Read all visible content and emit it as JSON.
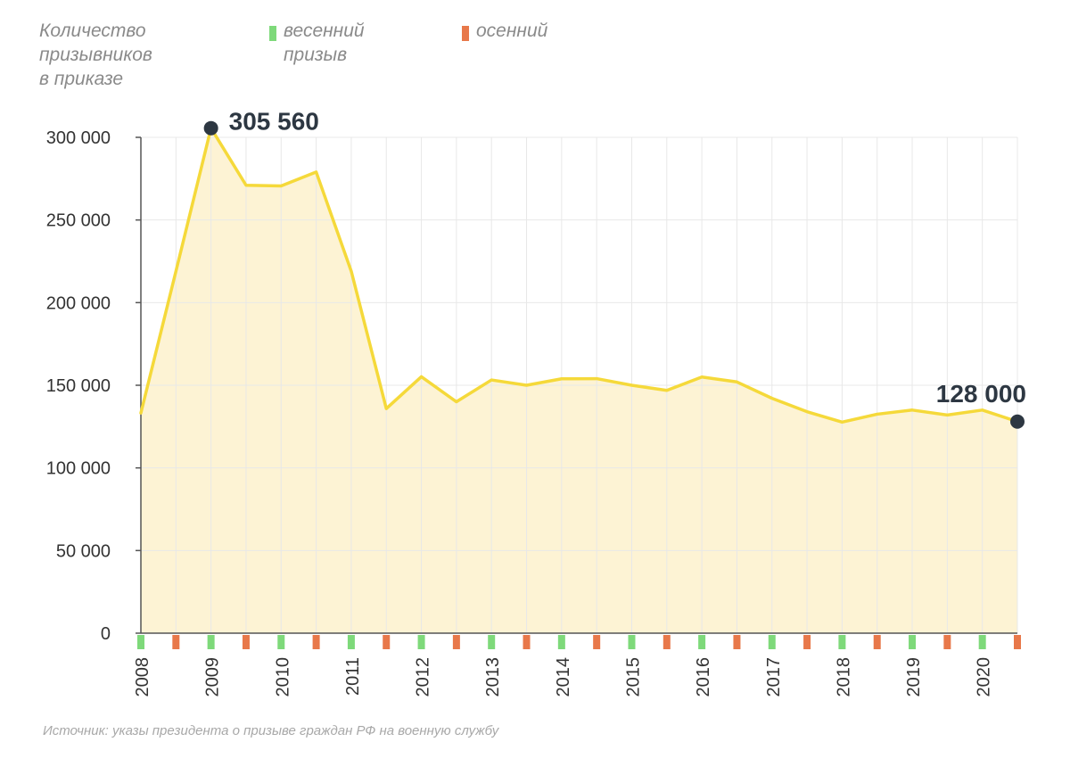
{
  "chart_data": {
    "type": "area",
    "ylabel_lines": [
      "Количество",
      "призывников",
      "в приказе"
    ],
    "legend": [
      {
        "label_lines": [
          "весенний",
          "призыв"
        ],
        "color": "#7ed97a"
      },
      {
        "label_lines": [
          "осенний"
        ],
        "color": "#e8784a"
      }
    ],
    "source": "Источник: указы президента о призыве граждан РФ на военную службу",
    "ylim": [
      0,
      300000
    ],
    "yticks": [
      0,
      50000,
      100000,
      150000,
      200000,
      250000,
      300000
    ],
    "ytick_labels": [
      "0",
      "50 000",
      "100 000",
      "150 000",
      "200 000",
      "250 000",
      "300 000"
    ],
    "year_labels": [
      "2008",
      "2009",
      "2010",
      "2011",
      "2012",
      "2013",
      "2014",
      "2015",
      "2016",
      "2017",
      "2018",
      "2019",
      "2020"
    ],
    "series": [
      {
        "name": "Количество призывников в приказе",
        "values": [
          133200,
          219000,
          305560,
          271000,
          270600,
          279000,
          219000,
          135850,
          155150,
          140000,
          153200,
          150000,
          153900,
          154000,
          150000,
          146900,
          155000,
          152000,
          142100,
          134000,
          127700,
          132500,
          135000,
          132000,
          135000,
          128000
        ]
      }
    ],
    "annotations": [
      {
        "index": 2,
        "label": "305 560"
      },
      {
        "index": 25,
        "label": "128 000"
      }
    ],
    "colors": {
      "line": "#f5d93a",
      "fill": "#fdf3d4",
      "dot": "#2d3742",
      "label": "#2d3742",
      "grid": "#e8e8e8",
      "axis": "#555555",
      "tick_text": "#333333"
    }
  }
}
